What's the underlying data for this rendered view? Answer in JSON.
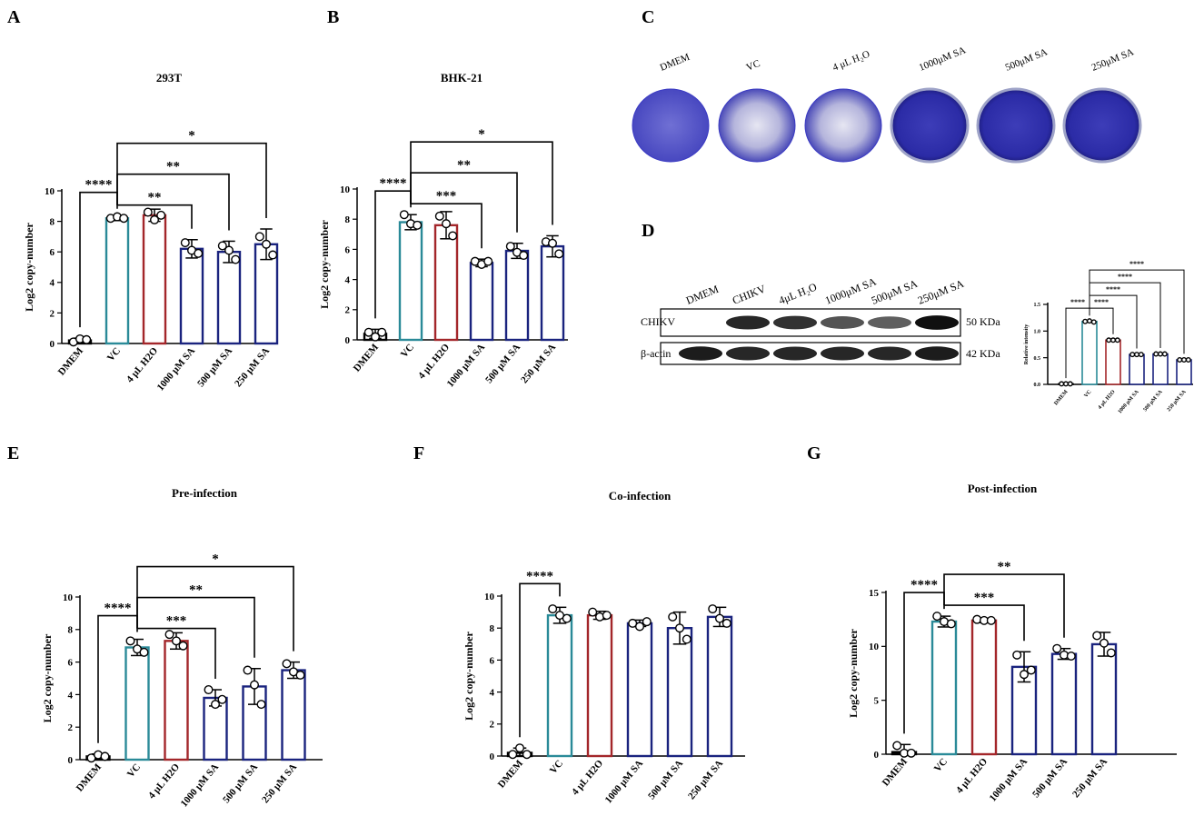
{
  "panels": {
    "A": "A",
    "B": "B",
    "C": "C",
    "D": "D",
    "E": "E",
    "F": "F",
    "G": "G"
  },
  "colors": {
    "vc": "#2a8a98",
    "h2o": "#a3262a",
    "sa": "#1a237e",
    "dmem": "#000000",
    "plate_stain": "#3b3bc4"
  },
  "plates": {
    "labels": [
      "DMEM",
      "VC",
      "4 μL H₂O",
      "1000μM SA",
      "500μM SA",
      "250μM SA"
    ],
    "states": [
      "clear",
      "lysed",
      "lysed",
      "intact",
      "intact",
      "intact"
    ]
  },
  "blot": {
    "lanes": [
      "DMEM",
      "CHIKV",
      "4μL H₂O",
      "1000μM SA",
      "500μM SA",
      "250μM SA"
    ],
    "rows": [
      {
        "name": "CHIKV",
        "kda": "50 KDa",
        "intensity": [
          0.0,
          0.85,
          0.8,
          0.65,
          0.6,
          0.95
        ]
      },
      {
        "name": "β-actin",
        "kda": "42 KDa",
        "intensity": [
          0.9,
          0.85,
          0.85,
          0.85,
          0.85,
          0.9
        ]
      }
    ]
  },
  "chart_data": [
    {
      "id": "A",
      "type": "bar",
      "title": "293T",
      "ylabel": "Log2 copy-number",
      "categories": [
        "DMEM",
        "VC",
        "4 μL H2O",
        "1000 μM SA",
        "500 μM SA",
        "250 μM SA"
      ],
      "values": [
        0.2,
        8.2,
        8.4,
        6.2,
        6.0,
        6.5
      ],
      "errors": [
        0.15,
        0.15,
        0.4,
        0.6,
        0.7,
        1.0
      ],
      "points": [
        [
          0.1,
          0.3,
          0.25
        ],
        [
          8.2,
          8.3,
          8.2
        ],
        [
          8.6,
          8.1,
          8.4
        ],
        [
          6.6,
          6.1,
          5.9
        ],
        [
          6.4,
          6.1,
          5.5
        ],
        [
          7.0,
          6.5,
          5.8
        ]
      ],
      "ylim": [
        0,
        10
      ],
      "yticks": [
        0,
        2,
        4,
        6,
        8,
        10
      ],
      "bar_colors": [
        "dmem",
        "vc",
        "h2o",
        "sa",
        "sa",
        "sa"
      ],
      "comparisons": [
        {
          "from": 0,
          "to": 1,
          "label": "****"
        },
        {
          "from": 1,
          "to": 3,
          "label": "**"
        },
        {
          "from": 1,
          "to": 4,
          "label": "**"
        },
        {
          "from": 1,
          "to": 5,
          "label": "*"
        }
      ]
    },
    {
      "id": "B",
      "type": "bar",
      "title": "BHK-21",
      "ylabel": "Log2 copy-number",
      "categories": [
        "DMEM",
        "VC",
        "4 μL H2O",
        "1000 μM SA",
        "500 μM SA",
        "250 μM SA"
      ],
      "values": [
        0.4,
        7.8,
        7.6,
        5.1,
        5.9,
        6.2
      ],
      "errors": [
        0.3,
        0.5,
        0.9,
        0.25,
        0.5,
        0.7
      ],
      "points": [
        [
          0.5,
          0.2,
          0.5
        ],
        [
          8.3,
          7.7,
          7.6
        ],
        [
          8.2,
          7.7,
          6.9
        ],
        [
          5.2,
          5.0,
          5.2
        ],
        [
          6.2,
          5.8,
          5.6
        ],
        [
          6.5,
          6.4,
          5.7
        ]
      ],
      "ylim": [
        0,
        10
      ],
      "yticks": [
        0,
        2,
        4,
        6,
        8,
        10
      ],
      "bar_colors": [
        "dmem",
        "vc",
        "h2o",
        "sa",
        "sa",
        "sa"
      ],
      "comparisons": [
        {
          "from": 0,
          "to": 1,
          "label": "****"
        },
        {
          "from": 1,
          "to": 3,
          "label": "***"
        },
        {
          "from": 1,
          "to": 4,
          "label": "**"
        },
        {
          "from": 1,
          "to": 5,
          "label": "*"
        }
      ]
    },
    {
      "id": "D",
      "type": "bar",
      "title": "",
      "ylabel": "Relative intensity",
      "categories": [
        "DMEM",
        "VC",
        "4 μL H2O",
        "1000 μM SA",
        "500 μM SA",
        "250 μM SA"
      ],
      "values": [
        0.01,
        1.18,
        0.83,
        0.56,
        0.57,
        0.46
      ],
      "errors": [
        0.005,
        0.01,
        0.01,
        0.01,
        0.01,
        0.01
      ],
      "points": [
        [
          0.01,
          0.01,
          0.01
        ],
        [
          1.18,
          1.19,
          1.17
        ],
        [
          0.83,
          0.83,
          0.83
        ],
        [
          0.56,
          0.56,
          0.56
        ],
        [
          0.57,
          0.57,
          0.57
        ],
        [
          0.46,
          0.46,
          0.46
        ]
      ],
      "ylim": [
        0,
        1.5
      ],
      "yticks": [
        0,
        0.5,
        1.0,
        1.5
      ],
      "ytick_labels": [
        "0.0",
        "0.5",
        "1.0",
        "1.5"
      ],
      "bar_colors": [
        "dmem",
        "vc",
        "h2o",
        "sa",
        "sa",
        "sa"
      ],
      "comparisons": [
        {
          "from": 0,
          "to": 1,
          "label": "****"
        },
        {
          "from": 1,
          "to": 2,
          "label": "****"
        },
        {
          "from": 1,
          "to": 3,
          "label": "****"
        },
        {
          "from": 1,
          "to": 4,
          "label": "****"
        },
        {
          "from": 1,
          "to": 5,
          "label": "****"
        }
      ]
    },
    {
      "id": "E",
      "type": "bar",
      "title": "Pre-infection",
      "ylabel": "Log2 copy-number",
      "categories": [
        "DMEM",
        "VC",
        "4 μL H2O",
        "1000 μM SA",
        "500 μM SA",
        "250 μM SA"
      ],
      "values": [
        0.2,
        6.9,
        7.3,
        3.8,
        4.5,
        5.5
      ],
      "errors": [
        0.15,
        0.5,
        0.5,
        0.5,
        1.1,
        0.5
      ],
      "points": [
        [
          0.1,
          0.3,
          0.2
        ],
        [
          7.3,
          6.8,
          6.6
        ],
        [
          7.7,
          7.3,
          7.0
        ],
        [
          4.3,
          3.4,
          3.7
        ],
        [
          5.5,
          4.6,
          3.4
        ],
        [
          5.9,
          5.4,
          5.2
        ]
      ],
      "ylim": [
        0,
        10
      ],
      "yticks": [
        0,
        2,
        4,
        6,
        8,
        10
      ],
      "bar_colors": [
        "dmem",
        "vc",
        "h2o",
        "sa",
        "sa",
        "sa"
      ],
      "comparisons": [
        {
          "from": 0,
          "to": 1,
          "label": "****"
        },
        {
          "from": 1,
          "to": 3,
          "label": "***"
        },
        {
          "from": 1,
          "to": 4,
          "label": "**"
        },
        {
          "from": 1,
          "to": 5,
          "label": "*"
        }
      ]
    },
    {
      "id": "F",
      "type": "bar",
      "title": "Co-infection",
      "ylabel": "Log2 copy-number",
      "categories": [
        "DMEM",
        "VC",
        "4 μL H2O",
        "1000 μM SA",
        "500 μM SA",
        "250 μM SA"
      ],
      "values": [
        0.2,
        8.8,
        8.8,
        8.3,
        8.0,
        8.7
      ],
      "errors": [
        0.3,
        0.5,
        0.25,
        0.2,
        1.0,
        0.6
      ],
      "points": [
        [
          0.1,
          0.5,
          0.1
        ],
        [
          9.2,
          8.8,
          8.6
        ],
        [
          9.0,
          8.7,
          8.8
        ],
        [
          8.3,
          8.1,
          8.4
        ],
        [
          8.7,
          8.0,
          7.3
        ],
        [
          9.2,
          8.6,
          8.3
        ]
      ],
      "ylim": [
        0,
        10
      ],
      "yticks": [
        0,
        2,
        4,
        6,
        8,
        10
      ],
      "bar_colors": [
        "dmem",
        "vc",
        "h2o",
        "sa",
        "sa",
        "sa"
      ],
      "comparisons": [
        {
          "from": 0,
          "to": 1,
          "label": "****"
        }
      ]
    },
    {
      "id": "G",
      "type": "bar",
      "title": "Post-infection",
      "ylabel": "Log2 copy-number",
      "categories": [
        "DMEM",
        "VC",
        "4 μL H2O",
        "1000 μM SA",
        "500 μM SA",
        "250 μM SA"
      ],
      "values": [
        0.2,
        12.3,
        12.4,
        8.1,
        9.3,
        10.2
      ],
      "errors": [
        0.7,
        0.5,
        0.2,
        1.4,
        0.5,
        1.1
      ],
      "points": [
        [
          0.8,
          0.1,
          0.1
        ],
        [
          12.8,
          12.3,
          12.1
        ],
        [
          12.5,
          12.4,
          12.4
        ],
        [
          9.2,
          7.4,
          7.8
        ],
        [
          9.8,
          9.2,
          9.1
        ],
        [
          11.0,
          10.3,
          9.4
        ]
      ],
      "ylim": [
        0,
        15
      ],
      "yticks": [
        0,
        5,
        10,
        15
      ],
      "bar_colors": [
        "dmem",
        "vc",
        "h2o",
        "sa",
        "sa",
        "sa"
      ],
      "comparisons": [
        {
          "from": 0,
          "to": 1,
          "label": "****"
        },
        {
          "from": 1,
          "to": 3,
          "label": "***"
        },
        {
          "from": 1,
          "to": 4,
          "label": "**"
        }
      ]
    }
  ]
}
